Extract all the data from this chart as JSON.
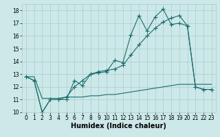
{
  "xlabel": "Humidex (Indice chaleur)",
  "ylabel": "",
  "bg_color": "#cce8e8",
  "grid_color": "#aacccc",
  "line_color": "#1a6b6b",
  "xlim": [
    -0.5,
    23.5
  ],
  "ylim": [
    10,
    18.5
  ],
  "x_ticks": [
    0,
    1,
    2,
    3,
    4,
    5,
    6,
    7,
    8,
    9,
    10,
    11,
    12,
    13,
    14,
    15,
    16,
    17,
    18,
    19,
    20,
    21,
    22,
    23
  ],
  "y_ticks": [
    10,
    11,
    12,
    13,
    14,
    15,
    16,
    17,
    18
  ],
  "line1_x": [
    0,
    1,
    2,
    3,
    4,
    5,
    6,
    7,
    8,
    9,
    10,
    11,
    12,
    13,
    14,
    15,
    16,
    17,
    18,
    19,
    20,
    21,
    22,
    23
  ],
  "line1_y": [
    12.8,
    12.5,
    10.0,
    11.0,
    11.0,
    11.0,
    12.5,
    12.1,
    13.0,
    13.1,
    13.2,
    14.1,
    13.9,
    16.1,
    17.6,
    16.4,
    17.5,
    18.1,
    16.9,
    17.0,
    16.8,
    12.0,
    11.8,
    11.8
  ],
  "line2_x": [
    0,
    1,
    2,
    3,
    4,
    5,
    6,
    7,
    8,
    9,
    10,
    11,
    12,
    13,
    14,
    15,
    16,
    17,
    18,
    19,
    20,
    21,
    22,
    23
  ],
  "line2_y": [
    12.8,
    12.5,
    10.0,
    11.0,
    11.0,
    11.2,
    12.0,
    12.5,
    13.0,
    13.2,
    13.3,
    13.4,
    13.7,
    14.5,
    15.3,
    16.0,
    16.6,
    17.1,
    17.4,
    17.6,
    16.8,
    12.0,
    11.8,
    11.8
  ],
  "line3_x": [
    0,
    1,
    2,
    3,
    4,
    5,
    6,
    7,
    8,
    9,
    10,
    11,
    12,
    13,
    14,
    15,
    16,
    17,
    18,
    19,
    20,
    21,
    22,
    23
  ],
  "line3_y": [
    12.8,
    12.8,
    11.1,
    11.1,
    11.1,
    11.2,
    11.2,
    11.2,
    11.3,
    11.3,
    11.4,
    11.4,
    11.5,
    11.6,
    11.7,
    11.8,
    11.9,
    12.0,
    12.1,
    12.2,
    12.2,
    12.2,
    12.2,
    12.2
  ],
  "marker": "+",
  "markersize": 4,
  "linewidth": 0.8,
  "xlabel_fontsize": 7,
  "tick_fontsize": 5.5
}
